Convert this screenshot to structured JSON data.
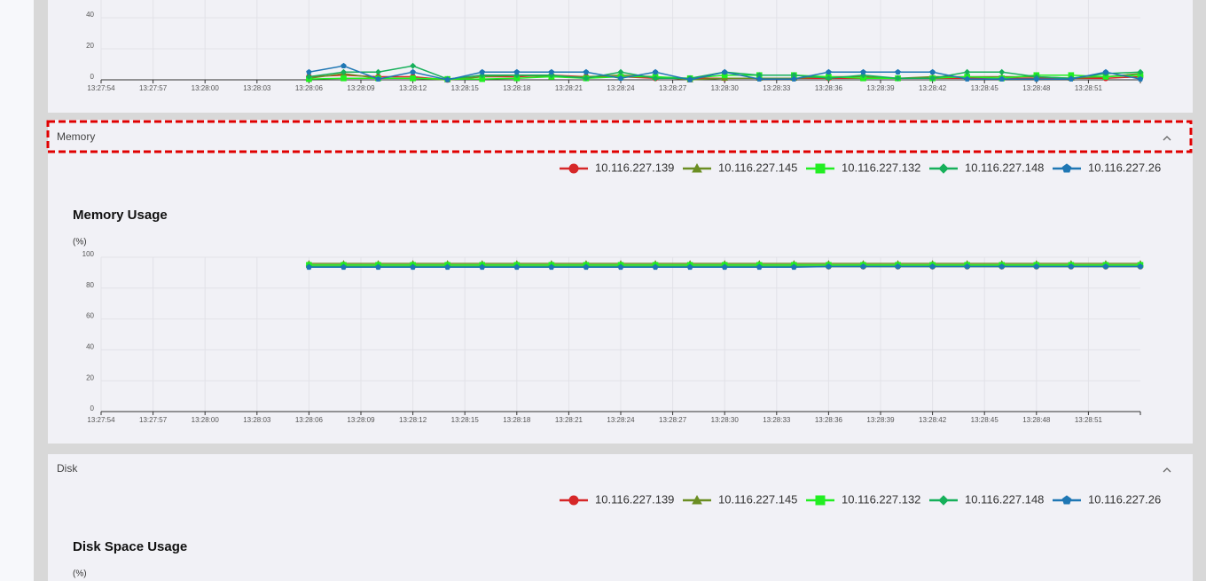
{
  "cpu_panel": {
    "chart": {
      "type": "line",
      "xlim": [
        0,
        60
      ],
      "xticks": [
        {
          "value": 0,
          "label": "13:27:54"
        },
        {
          "value": 3,
          "label": "13:27:57"
        },
        {
          "value": 6,
          "label": "13:28:00"
        },
        {
          "value": 9,
          "label": "13:28:03"
        },
        {
          "value": 12,
          "label": "13:28:06"
        },
        {
          "value": 15,
          "label": "13:28:09"
        },
        {
          "value": 18,
          "label": "13:28:12"
        },
        {
          "value": 21,
          "label": "13:28:15"
        },
        {
          "value": 24,
          "label": "13:28:18"
        },
        {
          "value": 27,
          "label": "13:28:21"
        },
        {
          "value": 30,
          "label": "13:28:24"
        },
        {
          "value": 33,
          "label": "13:28:27"
        },
        {
          "value": 36,
          "label": "13:28:30"
        },
        {
          "value": 39,
          "label": "13:28:33"
        },
        {
          "value": 42,
          "label": "13:28:36"
        },
        {
          "value": 45,
          "label": "13:28:39"
        },
        {
          "value": 48,
          "label": "13:28:42"
        },
        {
          "value": 51,
          "label": "13:28:45"
        },
        {
          "value": 54,
          "label": "13:28:48"
        },
        {
          "value": 57,
          "label": "13:28:51"
        }
      ],
      "ylim": [
        0,
        100
      ],
      "yticks": [
        0,
        20,
        40
      ],
      "grid": true,
      "x": [
        12,
        14,
        16,
        18,
        20,
        22,
        24,
        26,
        28,
        30,
        32,
        34,
        36,
        38,
        40,
        42,
        44,
        46,
        48,
        50,
        52,
        54,
        56,
        58,
        60
      ],
      "series": [
        {
          "name": "10.116.227.139",
          "color": "#d62728",
          "marker": "circle",
          "values": [
            2,
            3,
            2,
            2,
            0,
            2,
            2,
            3,
            2,
            2,
            1,
            1,
            1,
            1,
            1,
            1,
            1,
            1,
            1,
            1,
            1,
            1,
            1,
            1,
            2
          ]
        },
        {
          "name": "10.116.227.145",
          "color": "#6b8e23",
          "marker": "triangle",
          "values": [
            1,
            4,
            1,
            1,
            0,
            2,
            3,
            2,
            2,
            3,
            2,
            0,
            1,
            1,
            1,
            2,
            2,
            1,
            2,
            2,
            2,
            2,
            1,
            2,
            4
          ]
        },
        {
          "name": "10.116.227.132",
          "color": "#22ee22",
          "marker": "square",
          "values": [
            0.5,
            1,
            1,
            1,
            0.5,
            0.5,
            1,
            2,
            1,
            2,
            2,
            1,
            3,
            3,
            3,
            2,
            1,
            1,
            1,
            2,
            1,
            3,
            3,
            2,
            3
          ]
        },
        {
          "name": "10.116.227.148",
          "color": "#16b05a",
          "marker": "diamond",
          "values": [
            2,
            5,
            5,
            9,
            0.5,
            3,
            3,
            3,
            1,
            5,
            1,
            1,
            5,
            3,
            3,
            1,
            3,
            1,
            1,
            5,
            5,
            2,
            1,
            4,
            5
          ]
        },
        {
          "name": "10.116.227.26",
          "color": "#1f77b4",
          "marker": "pentagon",
          "values": [
            5,
            9,
            0.5,
            5,
            0,
            5,
            5,
            5,
            5,
            1,
            5,
            0,
            5,
            0.5,
            0.5,
            5,
            5,
            5,
            5,
            0.5,
            0.5,
            0.5,
            0.5,
            5,
            0.5
          ]
        }
      ]
    }
  },
  "memory_panel": {
    "header": "Memory",
    "chart": {
      "type": "line",
      "title": "Memory Usage",
      "unit": "(%)",
      "xlim": [
        0,
        60
      ],
      "xticks": [
        {
          "value": 0,
          "label": "13:27:54"
        },
        {
          "value": 3,
          "label": "13:27:57"
        },
        {
          "value": 6,
          "label": "13:28:00"
        },
        {
          "value": 9,
          "label": "13:28:03"
        },
        {
          "value": 12,
          "label": "13:28:06"
        },
        {
          "value": 15,
          "label": "13:28:09"
        },
        {
          "value": 18,
          "label": "13:28:12"
        },
        {
          "value": 21,
          "label": "13:28:15"
        },
        {
          "value": 24,
          "label": "13:28:18"
        },
        {
          "value": 27,
          "label": "13:28:21"
        },
        {
          "value": 30,
          "label": "13:28:24"
        },
        {
          "value": 33,
          "label": "13:28:27"
        },
        {
          "value": 36,
          "label": "13:28:30"
        },
        {
          "value": 39,
          "label": "13:28:33"
        },
        {
          "value": 42,
          "label": "13:28:36"
        },
        {
          "value": 45,
          "label": "13:28:39"
        },
        {
          "value": 48,
          "label": "13:28:42"
        },
        {
          "value": 51,
          "label": "13:28:45"
        },
        {
          "value": 54,
          "label": "13:28:48"
        },
        {
          "value": 57,
          "label": "13:28:51"
        }
      ],
      "ylim": [
        0,
        100
      ],
      "yticks": [
        0,
        20,
        40,
        60,
        80,
        100
      ],
      "grid": true,
      "x": [
        12,
        14,
        16,
        18,
        20,
        22,
        24,
        26,
        28,
        30,
        32,
        34,
        36,
        38,
        40,
        42,
        44,
        46,
        48,
        50,
        52,
        54,
        56,
        58,
        60
      ],
      "series": [
        {
          "name": "10.116.227.139",
          "color": "#d62728",
          "marker": "circle",
          "values": [
            94,
            94,
            94,
            94,
            94,
            94,
            94,
            94,
            94,
            94,
            94,
            94,
            94,
            94,
            94,
            94,
            94,
            94,
            94,
            94,
            94,
            94,
            94,
            94,
            94
          ]
        },
        {
          "name": "10.116.227.145",
          "color": "#6b8e23",
          "marker": "triangle",
          "values": [
            96,
            96,
            96,
            96,
            96,
            96,
            96,
            96,
            96,
            96,
            96,
            96,
            96,
            96,
            96,
            96,
            96,
            96,
            96,
            96,
            96,
            96,
            96,
            96,
            96
          ]
        },
        {
          "name": "10.116.227.132",
          "color": "#22ee22",
          "marker": "square",
          "values": [
            95,
            95,
            95,
            95,
            95,
            95,
            95,
            95,
            95,
            95,
            95,
            95,
            95,
            95,
            95,
            95,
            95,
            95,
            95,
            95,
            95,
            95,
            95,
            95,
            95
          ]
        },
        {
          "name": "10.116.227.148",
          "color": "#16b05a",
          "marker": "diamond",
          "values": [
            94,
            94,
            94,
            94,
            94,
            94,
            94,
            94,
            94,
            94,
            94,
            94,
            94,
            94,
            94,
            94,
            94,
            94,
            94,
            94,
            94,
            94,
            94,
            94,
            94
          ]
        },
        {
          "name": "10.116.227.26",
          "color": "#1f77b4",
          "marker": "pentagon",
          "values": [
            93.5,
            93.5,
            93.5,
            93.5,
            93.5,
            93.5,
            93.5,
            93.5,
            93.5,
            93.5,
            93.5,
            93.5,
            93.5,
            93.5,
            93.5,
            94,
            94,
            94,
            94,
            94,
            94,
            94,
            94,
            94,
            94
          ]
        }
      ]
    }
  },
  "disk_panel": {
    "header": "Disk",
    "chart": {
      "type": "line",
      "title": "Disk Space Usage",
      "unit": "(%)",
      "series": [
        {
          "name": "10.116.227.139",
          "color": "#d62728",
          "marker": "circle"
        },
        {
          "name": "10.116.227.145",
          "color": "#6b8e23",
          "marker": "triangle"
        },
        {
          "name": "10.116.227.132",
          "color": "#22ee22",
          "marker": "square"
        },
        {
          "name": "10.116.227.148",
          "color": "#16b05a",
          "marker": "diamond"
        },
        {
          "name": "10.116.227.26",
          "color": "#1f77b4",
          "marker": "pentagon"
        }
      ]
    }
  }
}
